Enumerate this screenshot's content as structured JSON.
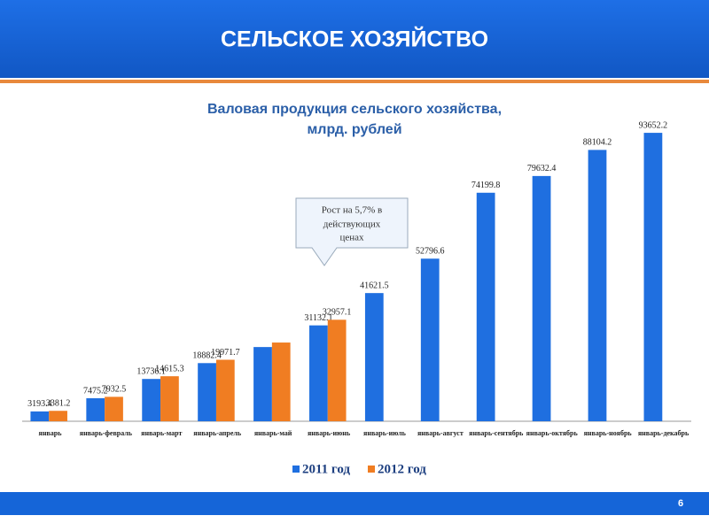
{
  "header": {
    "title": "СЕЛЬСКОЕ ХОЗЯЙСТВО"
  },
  "footer": {
    "page": "6"
  },
  "chart_data": {
    "type": "bar",
    "title": "Валовая продукция сельского хозяйства,",
    "subtitle": "млрд. рублей",
    "annotation": [
      "Рост на 5,7% в",
      "действующих",
      "ценах"
    ],
    "categories": [
      "январь",
      "январь-февраль",
      "январь-март",
      "январь-апрель",
      "январь-май",
      "январь-июнь",
      "январь-июль",
      "январь-август",
      "январь-сентябрь",
      "январь-октябрь",
      "январь-ноябрь",
      "январь-декабрь"
    ],
    "ylim": [
      0,
      100000
    ],
    "series": [
      {
        "name": "2011 год",
        "color": "#1f6fe0",
        "values": [
          3193.4,
          7475.2,
          13736.1,
          18882.4,
          24100,
          31132.1,
          41621.5,
          52796.6,
          74199.8,
          79632.4,
          88104.2,
          93652.2
        ],
        "value_labels": [
          "3193.4",
          "7475.2",
          "13736.1",
          "18882.4",
          null,
          "31132.1",
          "41621.5",
          "52796.6",
          "74199.8",
          "79632.4",
          "88104.2",
          "93652.2"
        ]
      },
      {
        "name": "2012 год",
        "color": "#f07d22",
        "values": [
          3381.2,
          7932.5,
          14615.3,
          19971.7,
          25560,
          32957.1,
          null,
          null,
          null,
          null,
          null,
          null
        ],
        "value_labels": [
          "3381.2",
          "7932.5",
          "14615.3",
          "19971.7",
          null,
          "32957.1",
          null,
          null,
          null,
          null,
          null,
          null
        ]
      }
    ]
  }
}
